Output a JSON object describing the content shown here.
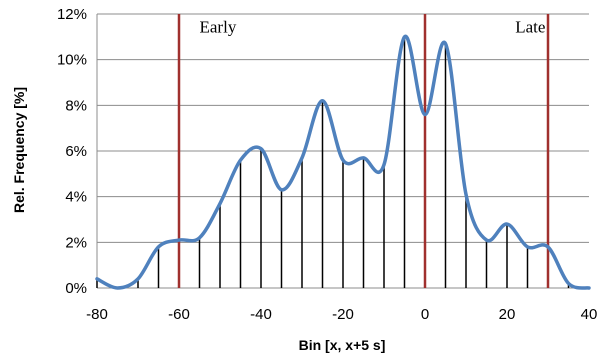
{
  "chart_data": {
    "type": "line",
    "title": "",
    "xlabel": "Bin [x, x+5 s]",
    "ylabel": "Rel. Frequency [%]",
    "xlim": [
      -80,
      40
    ],
    "ylim": [
      0,
      12
    ],
    "x_ticks": [
      -80,
      -60,
      -40,
      -20,
      0,
      20,
      40
    ],
    "x_tick_labels": [
      "-80",
      "-60",
      "-40",
      "-20",
      "0",
      "20",
      "40"
    ],
    "y_ticks": [
      0,
      2,
      4,
      6,
      8,
      10,
      12
    ],
    "y_tick_labels": [
      "0%",
      "2%",
      "4%",
      "6%",
      "8%",
      "10%",
      "12%"
    ],
    "grid": "horizontal",
    "series": [
      {
        "color": "#4f81bd",
        "smooth": true,
        "x": [
          -80,
          -75,
          -70,
          -65,
          -60,
          -55,
          -50,
          -45,
          -40,
          -35,
          -30,
          -25,
          -20,
          -15,
          -10,
          -5,
          0,
          5,
          10,
          15,
          20,
          25,
          30,
          35,
          40
        ],
        "y": [
          0.4,
          0.0,
          0.4,
          1.8,
          2.1,
          2.2,
          3.7,
          5.6,
          6.1,
          4.3,
          5.7,
          8.2,
          5.6,
          5.7,
          5.4,
          11.0,
          7.6,
          10.7,
          4.1,
          2.1,
          2.8,
          1.8,
          1.8,
          0.2,
          0.0
        ]
      }
    ],
    "stems": {
      "color": "#000000",
      "x": [
        -80,
        -75,
        -70,
        -65,
        -60,
        -55,
        -50,
        -45,
        -40,
        -35,
        -30,
        -25,
        -20,
        -15,
        -10,
        -5,
        0,
        5,
        10,
        15,
        20,
        25,
        30,
        35,
        40
      ],
      "y": [
        0.4,
        0.0,
        0.4,
        1.8,
        2.1,
        2.2,
        3.7,
        5.6,
        6.1,
        4.3,
        5.7,
        8.2,
        5.6,
        5.7,
        5.4,
        11.0,
        7.6,
        10.7,
        4.1,
        2.1,
        2.8,
        1.8,
        1.8,
        0.2,
        0.0
      ]
    },
    "reference_lines": {
      "color": "#a0302e",
      "x": [
        -60,
        0,
        30
      ]
    },
    "annotations": [
      {
        "text": "Early",
        "x": -55,
        "y": 11.2
      },
      {
        "text": "Late",
        "x": 22,
        "y": 11.2
      }
    ]
  }
}
